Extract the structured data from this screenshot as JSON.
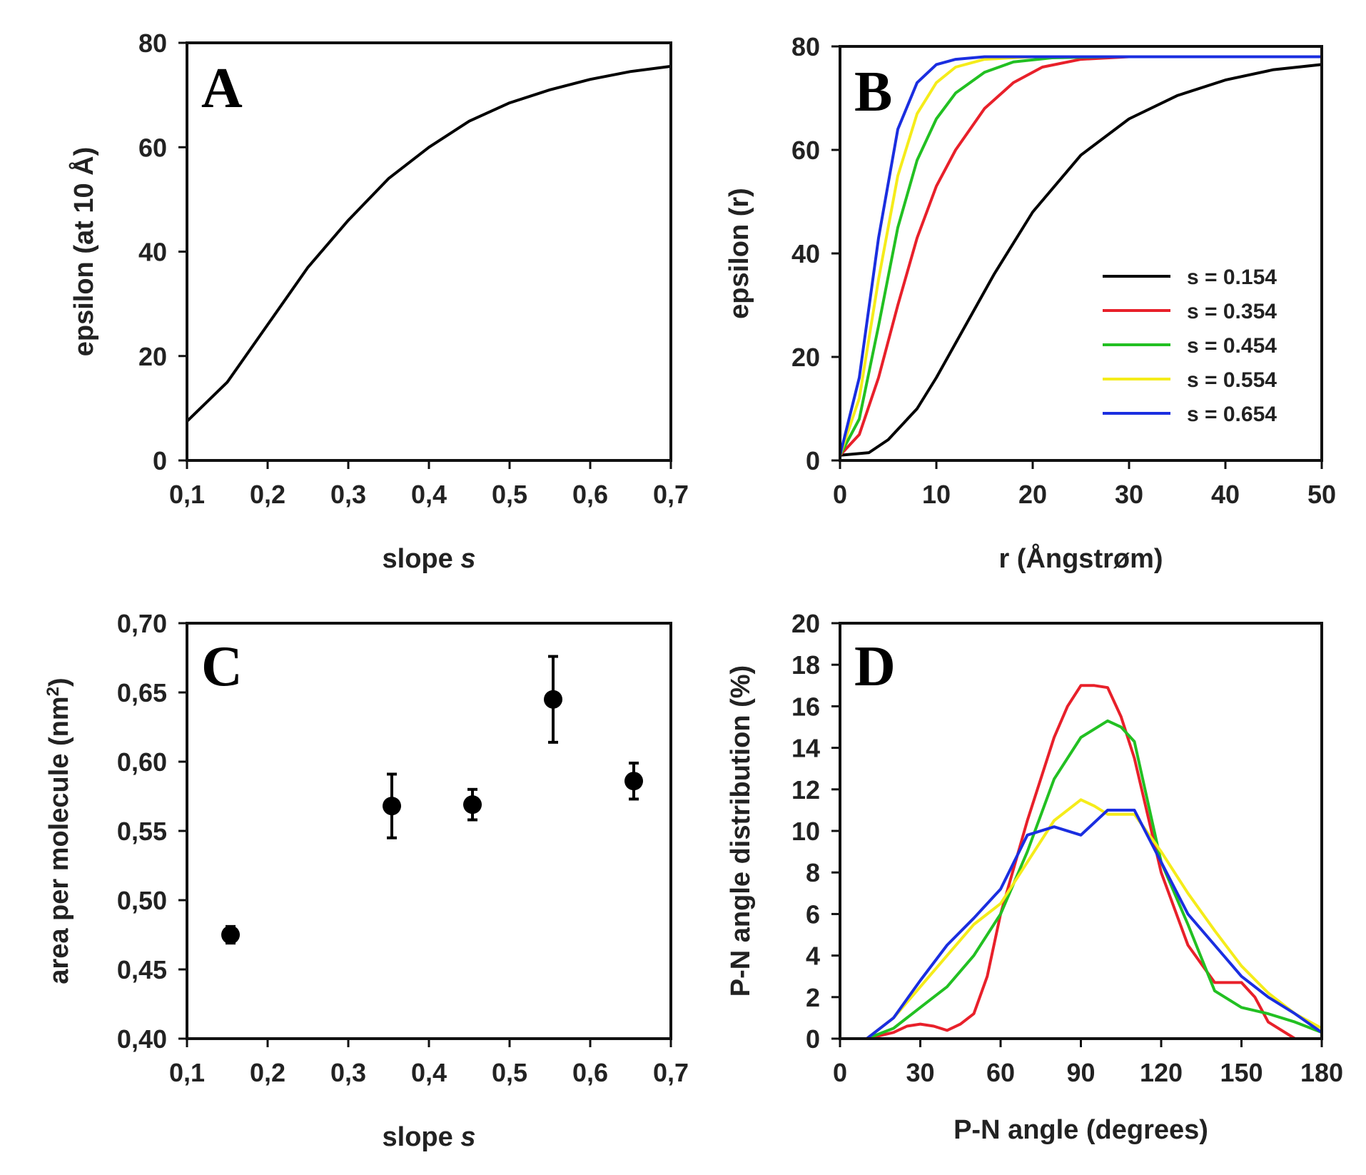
{
  "chart_data": [
    {
      "panel": "A",
      "type": "line",
      "xlabel": "slope s",
      "ylabel": "epsilon (at 10 Å)",
      "xlim": [
        0.1,
        0.7
      ],
      "ylim": [
        0,
        80
      ],
      "xticks": [
        "0,1",
        "0,2",
        "0,3",
        "0,4",
        "0,5",
        "0,6",
        "0,7"
      ],
      "yticks": [
        "0",
        "20",
        "40",
        "60",
        "80"
      ],
      "series": [
        {
          "color": "#000000",
          "x": [
            0.1,
            0.15,
            0.2,
            0.25,
            0.3,
            0.35,
            0.4,
            0.45,
            0.5,
            0.55,
            0.6,
            0.65,
            0.7
          ],
          "y": [
            7.5,
            15,
            26,
            37,
            46,
            54,
            60,
            65,
            68.5,
            71,
            73,
            74.5,
            75.5
          ]
        }
      ]
    },
    {
      "panel": "B",
      "type": "line",
      "xlabel": "r (Ångstrøm)",
      "ylabel": "epsilon (r)",
      "xlim": [
        0,
        50
      ],
      "ylim": [
        0,
        80
      ],
      "xticks": [
        "0",
        "10",
        "20",
        "30",
        "40",
        "50"
      ],
      "yticks": [
        "0",
        "20",
        "40",
        "60",
        "80"
      ],
      "legend_position": "center-right",
      "series": [
        {
          "name": "s = 0.154",
          "color": "#000000",
          "x": [
            0,
            3,
            5,
            8,
            10,
            13,
            16,
            20,
            25,
            30,
            35,
            40,
            45,
            50
          ],
          "y": [
            1,
            1.5,
            4,
            10,
            16,
            26,
            36,
            48,
            59,
            66,
            70.5,
            73.5,
            75.5,
            76.5
          ]
        },
        {
          "name": "s = 0.354",
          "color": "#e8202a",
          "x": [
            0,
            2,
            4,
            6,
            8,
            10,
            12,
            15,
            18,
            21,
            25,
            30,
            40,
            50
          ],
          "y": [
            1,
            5,
            16,
            30,
            43,
            53,
            60,
            68,
            73,
            76,
            77.5,
            78,
            78,
            78
          ]
        },
        {
          "name": "s = 0.454",
          "color": "#22c022",
          "x": [
            0,
            2,
            4,
            6,
            8,
            10,
            12,
            15,
            18,
            22,
            28,
            35,
            50
          ],
          "y": [
            1,
            8,
            26,
            45,
            58,
            66,
            71,
            75,
            77,
            77.8,
            78,
            78,
            78
          ]
        },
        {
          "name": "s = 0.554",
          "color": "#f5ec1a",
          "x": [
            0,
            2,
            4,
            6,
            8,
            10,
            12,
            15,
            20,
            25,
            35,
            50
          ],
          "y": [
            1,
            12,
            35,
            55,
            67,
            73,
            76,
            77.5,
            78,
            78,
            78,
            78
          ]
        },
        {
          "name": "s = 0.654",
          "color": "#1a2ee0",
          "x": [
            0,
            2,
            4,
            6,
            8,
            10,
            12,
            15,
            20,
            30,
            50
          ],
          "y": [
            1,
            16,
            43,
            64,
            73,
            76.5,
            77.5,
            78,
            78,
            78,
            78
          ]
        }
      ]
    },
    {
      "panel": "C",
      "type": "scatter",
      "xlabel": "slope s",
      "ylabel": "area per molecule (nm",
      "ylabel_sup": "2",
      "ylabel_end": ")",
      "xlim": [
        0.1,
        0.7
      ],
      "ylim": [
        0.4,
        0.7
      ],
      "xticks": [
        "0,1",
        "0,2",
        "0,3",
        "0,4",
        "0,5",
        "0,6",
        "0,7"
      ],
      "yticks": [
        "0,40",
        "0,45",
        "0,50",
        "0,55",
        "0,60",
        "0,65",
        "0,70"
      ],
      "points": [
        {
          "x": 0.154,
          "y": 0.475,
          "err": 0.006
        },
        {
          "x": 0.354,
          "y": 0.568,
          "err": 0.023
        },
        {
          "x": 0.454,
          "y": 0.569,
          "err": 0.011
        },
        {
          "x": 0.554,
          "y": 0.645,
          "err": 0.031
        },
        {
          "x": 0.654,
          "y": 0.586,
          "err": 0.013
        }
      ]
    },
    {
      "panel": "D",
      "type": "line",
      "xlabel": "P-N angle (degrees)",
      "ylabel": "P-N angle distribution (%)",
      "xlim": [
        0,
        180
      ],
      "ylim": [
        0,
        20
      ],
      "xticks": [
        "0",
        "30",
        "60",
        "90",
        "120",
        "150",
        "180"
      ],
      "yticks": [
        "0",
        "2",
        "4",
        "6",
        "8",
        "10",
        "12",
        "14",
        "16",
        "18",
        "20"
      ],
      "series": [
        {
          "color": "#e8202a",
          "x": [
            0,
            10,
            20,
            25,
            30,
            35,
            40,
            45,
            50,
            55,
            60,
            70,
            80,
            85,
            90,
            95,
            100,
            105,
            110,
            120,
            130,
            140,
            150,
            155,
            160,
            170,
            180
          ],
          "y": [
            0,
            0,
            0.3,
            0.6,
            0.7,
            0.6,
            0.4,
            0.7,
            1.2,
            3,
            6,
            10.5,
            14.5,
            16,
            17,
            17,
            16.9,
            15.5,
            13.5,
            8,
            4.5,
            2.7,
            2.7,
            2,
            0.8,
            0,
            0
          ]
        },
        {
          "color": "#22c022",
          "x": [
            0,
            10,
            20,
            30,
            40,
            50,
            60,
            70,
            80,
            90,
            100,
            105,
            110,
            120,
            130,
            140,
            150,
            160,
            170,
            180
          ],
          "y": [
            0,
            0,
            0.5,
            1.5,
            2.5,
            4,
            6,
            9,
            12.5,
            14.5,
            15.3,
            15,
            14.3,
            8.5,
            5.5,
            2.3,
            1.5,
            1.2,
            0.8,
            0.3
          ]
        },
        {
          "color": "#f5ec1a",
          "x": [
            0,
            10,
            20,
            30,
            40,
            50,
            60,
            70,
            80,
            90,
            95,
            100,
            110,
            120,
            130,
            140,
            150,
            160,
            170,
            180
          ],
          "y": [
            0,
            0,
            1,
            2.5,
            4,
            5.5,
            6.5,
            8.5,
            10.5,
            11.5,
            11.2,
            10.8,
            10.8,
            9,
            7,
            5.2,
            3.5,
            2.2,
            1.2,
            0.5
          ]
        },
        {
          "color": "#1a2ee0",
          "x": [
            0,
            10,
            20,
            30,
            40,
            50,
            60,
            70,
            80,
            90,
            100,
            110,
            120,
            130,
            140,
            150,
            160,
            170,
            180
          ],
          "y": [
            0,
            0,
            1,
            2.8,
            4.5,
            5.8,
            7.2,
            9.8,
            10.2,
            9.8,
            11,
            11,
            8.5,
            6,
            4.5,
            3,
            2,
            1.2,
            0.3
          ]
        }
      ]
    }
  ]
}
